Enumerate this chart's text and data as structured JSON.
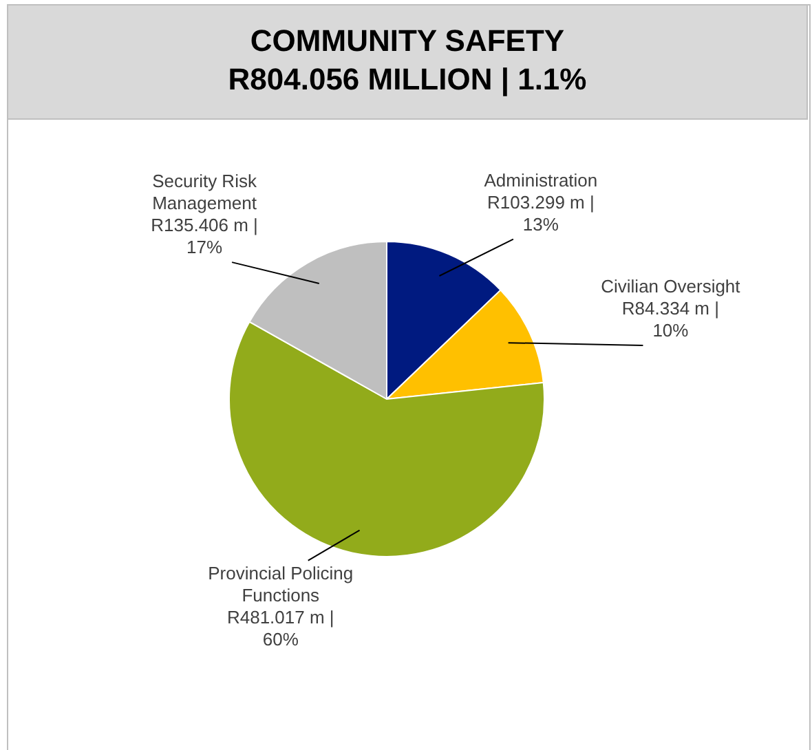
{
  "chart_data": {
    "type": "pie",
    "title": "COMMUNITY SAFETY",
    "subtitle": "R804.056 MILLION | 1.1%",
    "categories": [
      "Administration",
      "Civilian Oversight",
      "Provincial Policing Functions",
      "Security Risk Management"
    ],
    "values": [
      103.299,
      84.334,
      481.017,
      135.406
    ],
    "colors": [
      "#001a80",
      "#ffc000",
      "#92ab1b",
      "#bfbfbf"
    ],
    "value_labels": [
      "R103.299 m | 13%",
      "R84.334 m | 10%",
      "R481.017 m | 60%",
      "R135.406 m | 17%"
    ],
    "legend": false
  }
}
